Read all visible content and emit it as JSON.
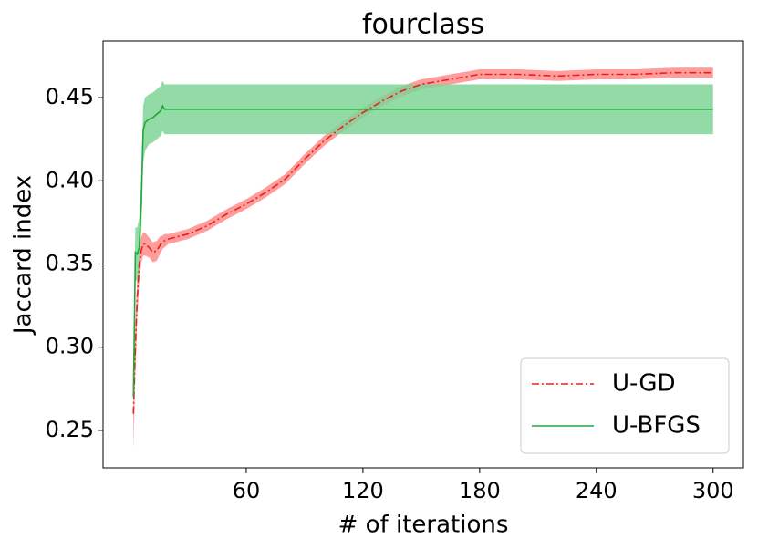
{
  "chart_data": {
    "type": "line",
    "title": "fourclass",
    "x_label": "# of iterations",
    "y_label": "Jaccard index",
    "x": [
      2,
      3,
      4,
      5,
      6,
      7,
      8,
      10,
      12,
      14,
      16,
      17,
      18,
      20,
      30,
      40,
      50,
      60,
      70,
      80,
      90,
      100,
      110,
      120,
      130,
      140,
      150,
      160,
      170,
      180,
      200,
      220,
      240,
      260,
      280,
      300
    ],
    "series": [
      {
        "name": "U-GD",
        "color": "#e8211c",
        "fill_color": "#ff8c8c",
        "line_style": "dashdot",
        "values": [
          0.26,
          0.3,
          0.33,
          0.35,
          0.358,
          0.362,
          0.362,
          0.36,
          0.357,
          0.358,
          0.362,
          0.363,
          0.364,
          0.365,
          0.368,
          0.373,
          0.38,
          0.386,
          0.393,
          0.401,
          0.413,
          0.424,
          0.433,
          0.441,
          0.448,
          0.454,
          0.458,
          0.46,
          0.462,
          0.464,
          0.464,
          0.463,
          0.464,
          0.464,
          0.465,
          0.465
        ],
        "lower": [
          0.238,
          0.285,
          0.318,
          0.34,
          0.35,
          0.355,
          0.355,
          0.354,
          0.351,
          0.352,
          0.357,
          0.359,
          0.36,
          0.362,
          0.365,
          0.37,
          0.377,
          0.383,
          0.39,
          0.398,
          0.41,
          0.421,
          0.43,
          0.438,
          0.445,
          0.451,
          0.455,
          0.457,
          0.459,
          0.461,
          0.461,
          0.46,
          0.461,
          0.461,
          0.462,
          0.462
        ],
        "upper": [
          0.275,
          0.315,
          0.342,
          0.36,
          0.366,
          0.369,
          0.369,
          0.366,
          0.363,
          0.364,
          0.367,
          0.367,
          0.368,
          0.368,
          0.371,
          0.376,
          0.383,
          0.389,
          0.396,
          0.404,
          0.416,
          0.427,
          0.436,
          0.444,
          0.451,
          0.457,
          0.461,
          0.463,
          0.465,
          0.467,
          0.467,
          0.466,
          0.467,
          0.467,
          0.468,
          0.468
        ]
      },
      {
        "name": "U-BFGS",
        "color": "#22a83a",
        "fill_color": "#7fd497",
        "line_style": "solid",
        "values": [
          0.27,
          0.357,
          0.356,
          0.36,
          0.385,
          0.43,
          0.435,
          0.437,
          0.438,
          0.44,
          0.442,
          0.445,
          0.443,
          0.443,
          0.443,
          0.443,
          0.443,
          0.443,
          0.443,
          0.443,
          0.443,
          0.443,
          0.443,
          0.443,
          0.443,
          0.443,
          0.443,
          0.443,
          0.443,
          0.443,
          0.443,
          0.443,
          0.443,
          0.443,
          0.443,
          0.443
        ],
        "lower": [
          0.255,
          0.34,
          0.34,
          0.345,
          0.368,
          0.41,
          0.418,
          0.422,
          0.423,
          0.425,
          0.427,
          0.43,
          0.428,
          0.428,
          0.428,
          0.428,
          0.428,
          0.428,
          0.428,
          0.428,
          0.428,
          0.428,
          0.428,
          0.428,
          0.428,
          0.428,
          0.428,
          0.428,
          0.428,
          0.428,
          0.428,
          0.428,
          0.428,
          0.428,
          0.428,
          0.428
        ],
        "upper": [
          0.285,
          0.372,
          0.372,
          0.378,
          0.4,
          0.445,
          0.45,
          0.452,
          0.453,
          0.455,
          0.457,
          0.46,
          0.458,
          0.458,
          0.458,
          0.458,
          0.458,
          0.458,
          0.458,
          0.458,
          0.458,
          0.458,
          0.458,
          0.458,
          0.458,
          0.458,
          0.458,
          0.458,
          0.458,
          0.458,
          0.458,
          0.458,
          0.458,
          0.458,
          0.458,
          0.458
        ]
      }
    ],
    "xlim": [
      -13.6,
      315.6
    ],
    "ylim": [
      0.2275,
      0.484
    ],
    "xticks": [
      60,
      120,
      180,
      240,
      300
    ],
    "yticks": [
      {
        "value": 0.25,
        "label": "0.25"
      },
      {
        "value": 0.3,
        "label": "0.30"
      },
      {
        "value": 0.35,
        "label": "0.35"
      },
      {
        "value": 0.4,
        "label": "0.40"
      },
      {
        "value": 0.45,
        "label": "0.45"
      }
    ],
    "grid": false,
    "legend": "lower right"
  }
}
